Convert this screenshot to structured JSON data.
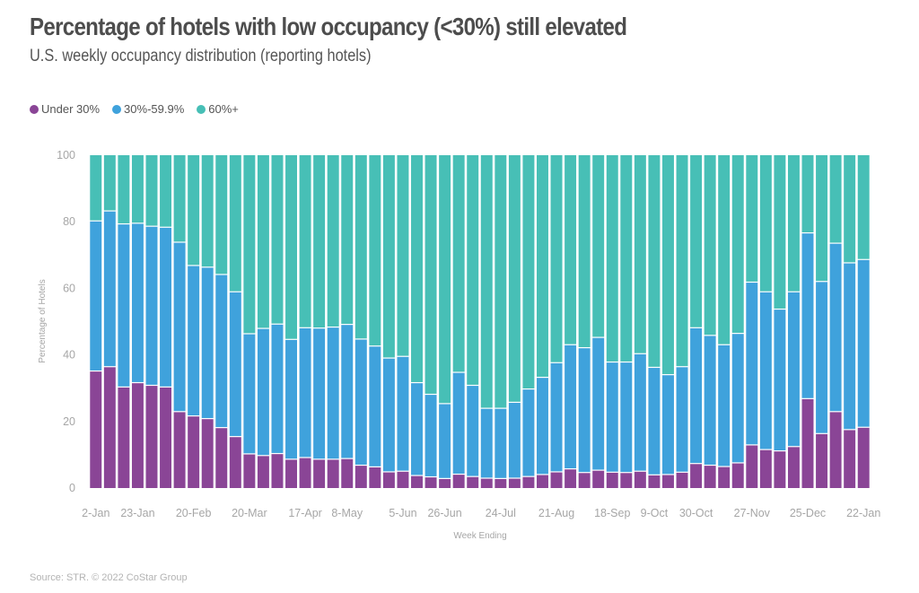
{
  "header": {
    "title": "Percentage of hotels with low occupancy (<30%) still elevated",
    "subtitle": "U.S. weekly occupancy distribution (reporting hotels)"
  },
  "footer": {
    "source": "Source: STR. © 2022 CoStar Group"
  },
  "chart_data": {
    "type": "bar",
    "stacked": true,
    "title": "Percentage of hotels with low occupancy (<30%) still elevated",
    "subtitle": "U.S. weekly occupancy distribution (reporting hotels)",
    "xlabel": "Week Ending",
    "ylabel": "Percentage of Hotels",
    "ylim": [
      0,
      100
    ],
    "yticks": [
      0,
      20,
      40,
      60,
      80,
      100
    ],
    "legend_position": "top-left",
    "grid": false,
    "x_tick_labels": [
      {
        "index": 0,
        "label": "2-Jan"
      },
      {
        "index": 3,
        "label": "23-Jan"
      },
      {
        "index": 7,
        "label": "20-Feb"
      },
      {
        "index": 11,
        "label": "20-Mar"
      },
      {
        "index": 15,
        "label": "17-Apr"
      },
      {
        "index": 18,
        "label": "8-May"
      },
      {
        "index": 22,
        "label": "5-Jun"
      },
      {
        "index": 25,
        "label": "26-Jun"
      },
      {
        "index": 29,
        "label": "24-Jul"
      },
      {
        "index": 33,
        "label": "21-Aug"
      },
      {
        "index": 37,
        "label": "18-Sep"
      },
      {
        "index": 40,
        "label": "9-Oct"
      },
      {
        "index": 43,
        "label": "30-Oct"
      },
      {
        "index": 47,
        "label": "27-Nov"
      },
      {
        "index": 51,
        "label": "25-Dec"
      },
      {
        "index": 55,
        "label": "22-Jan"
      }
    ],
    "categories": [
      "2-Jan",
      "9-Jan",
      "16-Jan",
      "23-Jan",
      "30-Jan",
      "6-Feb",
      "13-Feb",
      "20-Feb",
      "27-Feb",
      "6-Mar",
      "13-Mar",
      "20-Mar",
      "27-Mar",
      "3-Apr",
      "10-Apr",
      "17-Apr",
      "24-Apr",
      "1-May",
      "8-May",
      "15-May",
      "22-May",
      "29-May",
      "5-Jun",
      "12-Jun",
      "19-Jun",
      "26-Jun",
      "3-Jul",
      "10-Jul",
      "17-Jul",
      "24-Jul",
      "31-Jul",
      "7-Aug",
      "14-Aug",
      "21-Aug",
      "28-Aug",
      "4-Sep",
      "11-Sep",
      "18-Sep",
      "25-Sep",
      "2-Oct",
      "9-Oct",
      "16-Oct",
      "23-Oct",
      "30-Oct",
      "6-Nov",
      "13-Nov",
      "20-Nov",
      "27-Nov",
      "4-Dec",
      "11-Dec",
      "18-Dec",
      "25-Dec",
      "1-Jan",
      "8-Jan",
      "15-Jan",
      "22-Jan"
    ],
    "series": [
      {
        "name": "Under 30%",
        "color": "#8a4596",
        "values": [
          35.0,
          36.3,
          30.2,
          31.5,
          30.7,
          30.2,
          22.8,
          21.5,
          20.7,
          18.0,
          15.3,
          10.1,
          9.6,
          10.2,
          8.5,
          9.0,
          8.5,
          8.5,
          8.7,
          6.7,
          6.2,
          4.7,
          4.9,
          3.6,
          3.2,
          2.7,
          4.0,
          3.3,
          2.8,
          2.7,
          2.8,
          3.3,
          3.9,
          4.7,
          5.6,
          4.5,
          5.2,
          4.6,
          4.5,
          4.9,
          3.8,
          3.9,
          4.6,
          7.2,
          6.7,
          6.3,
          7.4,
          12.8,
          11.4,
          11.0,
          12.3,
          26.7,
          16.2,
          22.8,
          17.4,
          18.1
        ]
      },
      {
        "name": "30%-59.9%",
        "color": "#3fa2dc",
        "values": [
          45.1,
          46.8,
          49.0,
          47.9,
          47.8,
          48.0,
          50.9,
          45.2,
          45.5,
          46.0,
          43.5,
          36.1,
          38.2,
          38.9,
          36.0,
          39.0,
          39.4,
          39.7,
          40.3,
          37.9,
          36.3,
          34.2,
          34.5,
          27.9,
          24.8,
          22.5,
          30.6,
          27.4,
          21.0,
          21.1,
          22.8,
          26.3,
          29.2,
          32.8,
          37.3,
          37.5,
          39.9,
          33.1,
          33.2,
          35.3,
          32.3,
          30.0,
          31.7,
          40.8,
          39.0,
          36.6,
          38.9,
          48.9,
          47.4,
          42.6,
          46.5,
          49.8,
          45.7,
          50.6,
          50.1,
          50.4
        ]
      },
      {
        "name": "60%+",
        "color": "#47bfb6",
        "values": [
          19.9,
          16.9,
          20.8,
          20.6,
          21.5,
          21.8,
          26.3,
          33.3,
          33.8,
          36.0,
          41.2,
          53.8,
          52.2,
          50.9,
          55.5,
          52.0,
          52.1,
          51.8,
          51.0,
          55.4,
          57.5,
          61.1,
          60.6,
          68.5,
          72.0,
          74.8,
          65.4,
          69.3,
          76.2,
          76.2,
          74.4,
          70.4,
          66.9,
          62.5,
          57.1,
          58.0,
          54.9,
          62.3,
          62.3,
          59.8,
          63.9,
          66.1,
          63.7,
          52.0,
          54.3,
          57.1,
          53.7,
          38.3,
          41.2,
          46.4,
          41.2,
          23.5,
          38.1,
          26.6,
          32.5,
          31.5
        ]
      }
    ]
  }
}
